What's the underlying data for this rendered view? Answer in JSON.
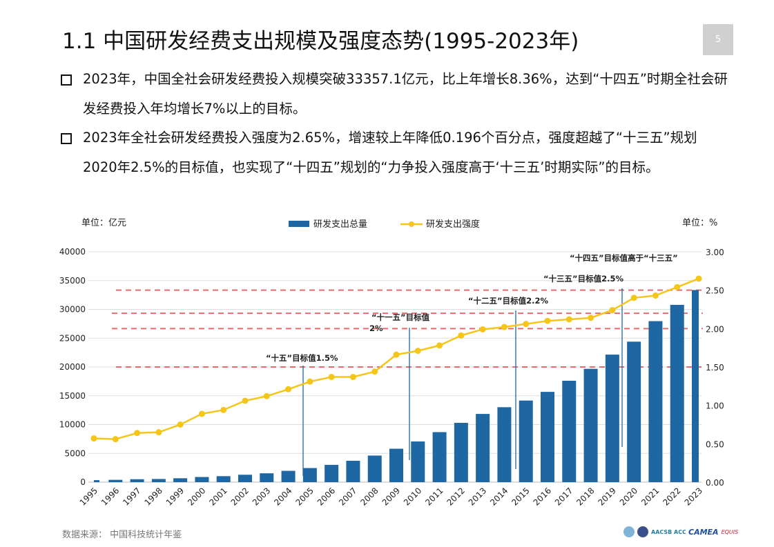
{
  "title": "1.1  中国研发经费支出规模及强度态势(1995-2023年)",
  "page_number": "5",
  "bullets": [
    "2023年，中国全社会研发经费投入规模突破33357.1亿元，比上年增长8.36%，达到“十四五”时期全社会研发经费投入年均增长7%以上的目标。",
    "2023年全社会研发经费投入强度为2.65%，增速较上年降低0.196个百分点，强度超越了“十三五”规划2020年2.5%的目标值，也实现了“十四五”规划的“力争投入强度高于‘十三五’时期实际”的目标。"
  ],
  "source": "数据来源：  中国科技统计年鉴",
  "logos": [
    "AACSB ACCREDITED",
    "CAMEA",
    "EQUIS"
  ],
  "chart_data": {
    "type": "bar+line",
    "left_unit": "单位：亿元",
    "right_unit": "单位：%",
    "legend_position": "top",
    "categories": [
      "1995",
      "1996",
      "1997",
      "1998",
      "1999",
      "2000",
      "2001",
      "2002",
      "2003",
      "2004",
      "2005",
      "2006",
      "2007",
      "2008",
      "2009",
      "2010",
      "2011",
      "2012",
      "2013",
      "2014",
      "2015",
      "2016",
      "2017",
      "2018",
      "2019",
      "2020",
      "2021",
      "2022",
      "2023"
    ],
    "series": [
      {
        "name": "研发支出总量",
        "type": "bar",
        "axis": "left",
        "color": "#1f67a3",
        "values": [
          348.7,
          404.5,
          509.2,
          551.1,
          678.9,
          895.7,
          1042.5,
          1287.6,
          1539.6,
          1966.3,
          2450,
          3003.1,
          3710.2,
          4616,
          5802.1,
          7062.6,
          8687,
          10298.4,
          11846.6,
          13015.6,
          14169.9,
          15676.7,
          17606.1,
          19677.9,
          22143.6,
          24393.1,
          27956.3,
          30782.9,
          33357.1
        ]
      },
      {
        "name": "研发支出强度",
        "type": "line",
        "axis": "right",
        "color": "#f5c518",
        "values": [
          0.57,
          0.56,
          0.64,
          0.65,
          0.75,
          0.89,
          0.94,
          1.06,
          1.12,
          1.21,
          1.31,
          1.37,
          1.37,
          1.44,
          1.66,
          1.71,
          1.78,
          1.91,
          1.99,
          2.02,
          2.06,
          2.1,
          2.12,
          2.14,
          2.24,
          2.4,
          2.43,
          2.54,
          2.65
        ]
      }
    ],
    "left_axis": {
      "range": [
        0,
        40000
      ],
      "ticks": [
        "0",
        "5000",
        "10000",
        "15000",
        "20000",
        "25000",
        "30000",
        "35000",
        "40000"
      ]
    },
    "right_axis": {
      "range": [
        0,
        3
      ],
      "ticks": [
        "0.00",
        "0.50",
        "1.00",
        "1.50",
        "2.00",
        "2.50",
        "3.00"
      ]
    },
    "grid": true,
    "reference_lines": [
      {
        "value": 1.5,
        "color": "#e86a6a"
      },
      {
        "value": 2.0,
        "color": "#e86a6a"
      },
      {
        "value": 2.2,
        "color": "#e86a6a"
      },
      {
        "value": 2.5,
        "color": "#e86a6a"
      }
    ],
    "annotations": [
      {
        "year": "2005",
        "lines": [
          "“十五”目标值1.5%"
        ]
      },
      {
        "year": "2010",
        "lines": [
          "“十一五”目标值",
          "2%"
        ]
      },
      {
        "year": "2015",
        "lines": [
          "“十二五”目标值2.2%"
        ]
      },
      {
        "year": "2020",
        "lines": [
          "“十三五”目标值2.5%"
        ]
      },
      {
        "year": "",
        "lines": [
          "“十四五”目标值高于“十三五”"
        ]
      }
    ]
  }
}
